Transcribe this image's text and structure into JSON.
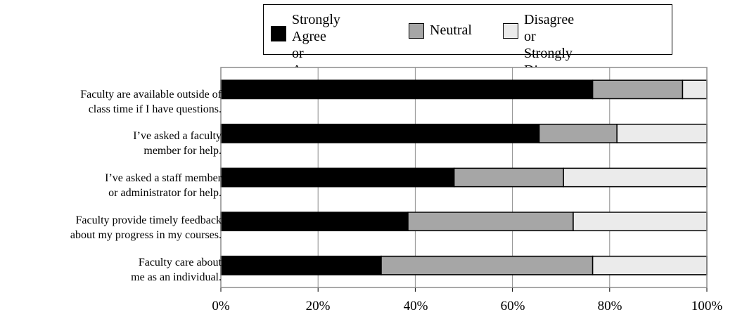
{
  "chart_data": {
    "type": "bar",
    "orientation": "horizontal",
    "stacked": true,
    "stack_mode": "percent",
    "categories": [
      "Faculty are available outside of\nclass time if I have questions.",
      "I’ve asked a faculty\nmember for help.",
      "I’ve asked a staff member\nor administrator for help.",
      "Faculty provide timely feedback\nabout my progress in my courses.",
      "Faculty care about\nme as an individual."
    ],
    "series": [
      {
        "name": "Strongly Agree\nor Agree",
        "color": "#000000",
        "values": [
          76.5,
          65.5,
          48.0,
          38.5,
          33.0
        ]
      },
      {
        "name": "Neutral",
        "color": "#a6a6a6",
        "values": [
          18.5,
          16.0,
          22.5,
          34.0,
          43.5
        ]
      },
      {
        "name": "Disagree or\nStrongly Disagree",
        "color": "#ebebeb",
        "values": [
          5.0,
          18.5,
          29.5,
          27.5,
          23.5
        ]
      }
    ],
    "x_ticks": [
      "0%",
      "20%",
      "40%",
      "60%",
      "80%",
      "100%"
    ],
    "xlim": [
      0,
      100
    ],
    "grid": "vertical",
    "legend_position": "top"
  }
}
